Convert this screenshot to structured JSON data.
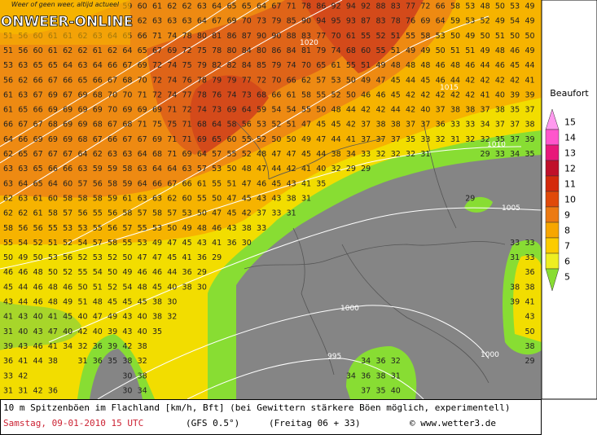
{
  "logo": {
    "tagline": "Weer of geen weer, altijd actueel",
    "name": "ONWEER-ONLINE"
  },
  "grid_rows": [
    [
      null,
      null,
      null,
      null,
      null,
      null,
      null,
      null,
      59,
      60,
      61,
      62,
      62,
      63,
      64,
      65,
      65,
      64,
      67,
      71,
      78,
      86,
      92,
      94,
      92,
      88,
      83,
      77,
      72,
      66,
      58,
      53,
      48,
      50,
      53,
      49
    ],
    [
      null,
      null,
      null,
      null,
      null,
      null,
      null,
      null,
      61,
      62,
      63,
      63,
      63,
      64,
      67,
      69,
      70,
      73,
      79,
      85,
      90,
      94,
      95,
      93,
      87,
      83,
      78,
      76,
      69,
      64,
      59,
      53,
      52,
      49,
      54,
      49
    ],
    [
      51,
      56,
      60,
      61,
      61,
      62,
      63,
      64,
      65,
      66,
      71,
      74,
      78,
      80,
      81,
      86,
      87,
      90,
      90,
      88,
      83,
      77,
      70,
      61,
      55,
      52,
      51,
      55,
      58,
      53,
      50,
      49,
      50,
      51,
      50,
      50
    ],
    [
      51,
      56,
      60,
      61,
      62,
      62,
      61,
      62,
      64,
      65,
      67,
      69,
      72,
      75,
      78,
      80,
      84,
      80,
      86,
      84,
      81,
      79,
      74,
      68,
      60,
      55,
      51,
      49,
      49,
      50,
      51,
      51,
      49,
      48,
      46,
      49
    ],
    [
      53,
      63,
      65,
      65,
      64,
      63,
      64,
      66,
      67,
      69,
      72,
      74,
      75,
      79,
      82,
      82,
      84,
      85,
      79,
      74,
      70,
      65,
      61,
      55,
      51,
      49,
      48,
      48,
      48,
      46,
      48,
      46,
      44,
      46,
      45,
      44
    ],
    [
      56,
      62,
      66,
      67,
      66,
      65,
      66,
      67,
      68,
      70,
      72,
      74,
      76,
      78,
      79,
      79,
      77,
      72,
      70,
      66,
      62,
      57,
      53,
      50,
      49,
      47,
      45,
      44,
      45,
      46,
      44,
      42,
      42,
      42,
      42,
      41
    ],
    [
      61,
      63,
      67,
      69,
      67,
      69,
      68,
      70,
      70,
      71,
      72,
      74,
      77,
      78,
      76,
      74,
      73,
      68,
      66,
      61,
      58,
      55,
      52,
      50,
      46,
      46,
      45,
      42,
      42,
      42,
      42,
      42,
      41,
      40,
      39,
      39
    ],
    [
      61,
      65,
      66,
      69,
      69,
      69,
      69,
      70,
      69,
      69,
      69,
      71,
      72,
      74,
      73,
      69,
      64,
      59,
      54,
      54,
      55,
      50,
      48,
      44,
      42,
      42,
      44,
      42,
      40,
      37,
      38,
      38,
      37,
      38,
      35,
      37
    ],
    [
      66,
      67,
      67,
      68,
      69,
      69,
      68,
      67,
      68,
      71,
      75,
      75,
      71,
      68,
      64,
      58,
      56,
      53,
      52,
      51,
      47,
      45,
      45,
      42,
      37,
      38,
      38,
      37,
      37,
      36,
      33,
      33,
      34,
      37,
      37,
      38
    ],
    [
      64,
      66,
      69,
      69,
      69,
      68,
      67,
      66,
      67,
      67,
      69,
      71,
      71,
      69,
      65,
      60,
      55,
      52,
      50,
      50,
      49,
      47,
      44,
      41,
      37,
      37,
      37,
      35,
      33,
      32,
      31,
      32,
      32,
      35,
      37,
      39
    ],
    [
      62,
      65,
      67,
      67,
      67,
      64,
      62,
      63,
      63,
      64,
      68,
      71,
      69,
      64,
      57,
      55,
      52,
      48,
      47,
      47,
      45,
      44,
      38,
      34,
      33,
      32,
      32,
      32,
      31,
      null,
      null,
      null,
      29,
      33,
      34,
      35
    ],
    [
      63,
      63,
      65,
      66,
      66,
      63,
      59,
      59,
      58,
      63,
      64,
      64,
      63,
      57,
      53,
      50,
      48,
      47,
      44,
      42,
      41,
      40,
      32,
      29,
      29,
      null,
      null,
      null,
      null,
      null,
      null,
      null,
      null,
      null,
      null,
      null
    ],
    [
      63,
      64,
      65,
      64,
      60,
      57,
      56,
      58,
      59,
      64,
      66,
      67,
      66,
      61,
      55,
      51,
      47,
      46,
      45,
      43,
      41,
      35,
      null,
      null,
      null,
      null,
      null,
      null,
      null,
      null,
      null,
      null,
      null,
      null,
      null,
      null
    ],
    [
      62,
      63,
      61,
      60,
      58,
      58,
      58,
      59,
      61,
      63,
      63,
      62,
      60,
      55,
      50,
      47,
      45,
      43,
      43,
      38,
      31,
      null,
      null,
      null,
      null,
      null,
      null,
      null,
      null,
      null,
      null,
      29,
      null,
      null,
      null,
      null
    ],
    [
      62,
      62,
      61,
      58,
      57,
      56,
      55,
      56,
      58,
      57,
      58,
      57,
      53,
      50,
      47,
      45,
      42,
      37,
      33,
      31,
      null,
      null,
      null,
      null,
      null,
      null,
      null,
      null,
      null,
      null,
      null,
      null,
      null,
      null,
      null,
      null
    ],
    [
      58,
      56,
      56,
      55,
      53,
      53,
      55,
      56,
      57,
      55,
      53,
      50,
      49,
      48,
      46,
      43,
      38,
      33,
      null,
      null,
      null,
      null,
      null,
      null,
      null,
      null,
      null,
      null,
      null,
      null,
      null,
      null,
      null,
      null,
      null,
      null
    ],
    [
      55,
      54,
      52,
      51,
      52,
      54,
      57,
      58,
      55,
      53,
      49,
      47,
      45,
      43,
      41,
      36,
      30,
      null,
      null,
      null,
      null,
      null,
      null,
      null,
      null,
      null,
      null,
      null,
      null,
      null,
      null,
      null,
      null,
      null,
      33,
      33
    ],
    [
      50,
      49,
      50,
      53,
      56,
      52,
      53,
      52,
      50,
      47,
      47,
      45,
      41,
      36,
      29,
      null,
      null,
      null,
      null,
      null,
      null,
      null,
      null,
      null,
      null,
      null,
      null,
      null,
      null,
      null,
      null,
      null,
      null,
      null,
      31,
      33
    ],
    [
      46,
      46,
      48,
      50,
      52,
      55,
      54,
      50,
      49,
      46,
      46,
      44,
      36,
      29,
      null,
      null,
      null,
      null,
      null,
      null,
      null,
      null,
      null,
      null,
      null,
      null,
      null,
      null,
      null,
      null,
      null,
      null,
      null,
      null,
      null,
      36
    ],
    [
      45,
      44,
      46,
      48,
      46,
      50,
      51,
      52,
      54,
      48,
      45,
      40,
      38,
      30,
      null,
      null,
      null,
      null,
      null,
      null,
      null,
      null,
      null,
      null,
      null,
      null,
      null,
      null,
      null,
      null,
      null,
      null,
      null,
      null,
      38,
      38
    ],
    [
      43,
      44,
      46,
      48,
      49,
      51,
      48,
      45,
      45,
      45,
      38,
      30,
      null,
      null,
      null,
      null,
      null,
      null,
      null,
      null,
      null,
      null,
      null,
      null,
      null,
      null,
      null,
      null,
      null,
      null,
      null,
      null,
      null,
      null,
      39,
      41
    ],
    [
      41,
      43,
      40,
      41,
      45,
      40,
      47,
      49,
      43,
      40,
      38,
      32,
      null,
      null,
      null,
      null,
      null,
      null,
      null,
      null,
      null,
      null,
      null,
      null,
      null,
      null,
      null,
      null,
      null,
      null,
      null,
      null,
      null,
      null,
      null,
      43
    ],
    [
      31,
      40,
      43,
      47,
      40,
      42,
      40,
      39,
      43,
      40,
      35,
      null,
      null,
      null,
      null,
      null,
      null,
      null,
      null,
      null,
      null,
      null,
      null,
      null,
      null,
      null,
      null,
      null,
      null,
      null,
      null,
      null,
      null,
      null,
      null,
      50
    ],
    [
      39,
      43,
      46,
      41,
      34,
      32,
      36,
      39,
      42,
      38,
      null,
      null,
      null,
      null,
      null,
      null,
      null,
      null,
      null,
      null,
      null,
      null,
      null,
      null,
      null,
      null,
      null,
      null,
      null,
      null,
      null,
      null,
      null,
      null,
      null,
      38
    ],
    [
      36,
      41,
      44,
      38,
      null,
      31,
      36,
      35,
      38,
      32,
      null,
      null,
      null,
      null,
      null,
      null,
      null,
      null,
      null,
      null,
      null,
      null,
      null,
      null,
      34,
      36,
      32,
      null,
      null,
      null,
      null,
      null,
      null,
      null,
      null,
      29
    ],
    [
      33,
      42,
      null,
      null,
      null,
      null,
      null,
      null,
      30,
      38,
      null,
      null,
      null,
      null,
      null,
      null,
      null,
      null,
      null,
      null,
      null,
      null,
      null,
      34,
      36,
      38,
      31,
      null,
      null,
      null,
      null,
      null,
      null,
      null,
      null,
      null
    ],
    [
      31,
      31,
      42,
      36,
      null,
      null,
      null,
      null,
      30,
      34,
      null,
      null,
      null,
      null,
      null,
      null,
      null,
      null,
      null,
      null,
      null,
      null,
      null,
      null,
      37,
      35,
      40,
      null,
      null,
      null,
      null,
      null,
      null,
      null,
      null,
      null
    ]
  ],
  "isobars": [
    "1020",
    "1015",
    "1010",
    "1005",
    "1000",
    "995",
    "1000"
  ],
  "legend": {
    "title": "Beaufort",
    "items": [
      {
        "label": "15",
        "color": "#ff99ee"
      },
      {
        "label": "14",
        "color": "#ff55cc"
      },
      {
        "label": "13",
        "color": "#e8187a"
      },
      {
        "label": "12",
        "color": "#c0102a"
      },
      {
        "label": "11",
        "color": "#d42a0c"
      },
      {
        "label": "10",
        "color": "#e04a0a"
      },
      {
        "label": "9",
        "color": "#ec7a12"
      },
      {
        "label": "8",
        "color": "#f7a600"
      },
      {
        "label": "7",
        "color": "#fccc00"
      },
      {
        "label": "6",
        "color": "#eeee22"
      },
      {
        "label": "5",
        "color": "#88dd33"
      }
    ]
  },
  "footer": {
    "description": "10 m Spitzenböen im Flachland [km/h, Bft] (bei Gewittern stärkere Böen möglich, experimentell)",
    "date": "Samstag, 09-01-2010  15 UTC",
    "model": "(GFS 0.5°)",
    "run": "(Freitag 06 + 33)",
    "source": "© www.wetter3.de"
  }
}
